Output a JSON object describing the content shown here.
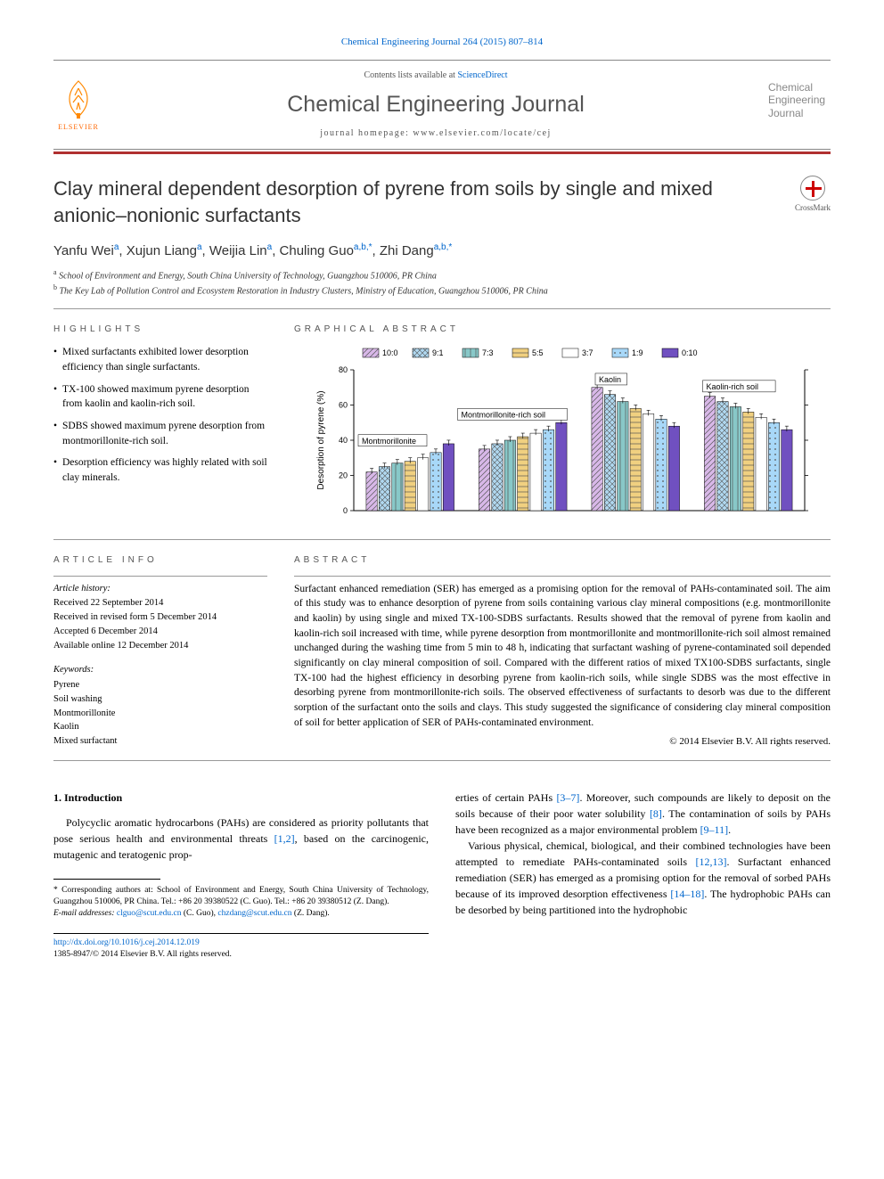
{
  "journal_ref": {
    "prefix": "Chemical Engineering Journal 264 (2015) 807–814",
    "link_text": "Chemical Engineering Journal 264 (2015) 807–814"
  },
  "masthead": {
    "contents_prefix": "Contents lists available at ",
    "contents_link": "ScienceDirect",
    "journal_title": "Chemical Engineering Journal",
    "homepage_prefix": "journal homepage: ",
    "homepage_url": "www.elsevier.com/locate/cej",
    "publisher": "ELSEVIER",
    "cover_text": "Chemical Engineering Journal"
  },
  "crossmark_label": "CrossMark",
  "title": "Clay mineral dependent desorption of pyrene from soils by single and mixed anionic–nonionic surfactants",
  "authors_html": "Yanfu Wei<sup>a</sup>, Xujun Liang<sup>a</sup>, Weijia Lin<sup>a</sup>, Chuling Guo<sup>a,b,*</sup>, Zhi Dang<sup>a,b,*</sup>",
  "affiliations": [
    {
      "sup": "a",
      "text": "School of Environment and Energy, South China University of Technology, Guangzhou 510006, PR China"
    },
    {
      "sup": "b",
      "text": "The Key Lab of Pollution Control and Ecosystem Restoration in Industry Clusters, Ministry of Education, Guangzhou 510006, PR China"
    }
  ],
  "highlights_heading": "HIGHLIGHTS",
  "highlights": [
    "Mixed surfactants exhibited lower desorption efficiency than single surfactants.",
    "TX-100 showed maximum pyrene desorption from kaolin and kaolin-rich soil.",
    "SDBS showed maximum pyrene desorption from montmorillonite-rich soil.",
    "Desorption efficiency was highly related with soil clay minerals."
  ],
  "graphical_heading": "GRAPHICAL ABSTRACT",
  "chart": {
    "type": "bar",
    "ylabel": "Desorption of pyrene (%)",
    "ylim": [
      0,
      80
    ],
    "ytick_step": 20,
    "categories": [
      "Montmorillonite",
      "Montmorillonite-rich soil",
      "Kaolin",
      "Kaolin-rich soil"
    ],
    "legend_labels": [
      "10:0",
      "9:1",
      "7:3",
      "5:5",
      "3:7",
      "1:9",
      "0:10"
    ],
    "legend_colors": [
      "#d8b8e8",
      "#b0d8f0",
      "#88c8c8",
      "#f0d080",
      "#ffffff",
      "#a8d8f8",
      "#7050c0"
    ],
    "legend_patterns": [
      "diag",
      "cross",
      "vert",
      "horiz",
      "none",
      "dots",
      "solid"
    ],
    "series": {
      "Montmorillonite": [
        22,
        25,
        27,
        28,
        30,
        33,
        38
      ],
      "Montmorillonite-rich soil": [
        35,
        38,
        40,
        42,
        44,
        46,
        50
      ],
      "Kaolin": [
        70,
        66,
        62,
        58,
        55,
        52,
        48
      ],
      "Kaolin-rich soil": [
        65,
        62,
        59,
        56,
        53,
        50,
        46
      ]
    },
    "background_color": "#ffffff",
    "axis_color": "#000000",
    "font_family": "Arial",
    "font_size_pt": 9
  },
  "article_info_heading": "ARTICLE INFO",
  "article_history_label": "Article history:",
  "article_history": [
    "Received 22 September 2014",
    "Received in revised form 5 December 2014",
    "Accepted 6 December 2014",
    "Available online 12 December 2014"
  ],
  "keywords_label": "Keywords:",
  "keywords": [
    "Pyrene",
    "Soil washing",
    "Montmorillonite",
    "Kaolin",
    "Mixed surfactant"
  ],
  "abstract_heading": "ABSTRACT",
  "abstract_text": "Surfactant enhanced remediation (SER) has emerged as a promising option for the removal of PAHs-contaminated soil. The aim of this study was to enhance desorption of pyrene from soils containing various clay mineral compositions (e.g. montmorillonite and kaolin) by using single and mixed TX-100-SDBS surfactants. Results showed that the removal of pyrene from kaolin and kaolin-rich soil increased with time, while pyrene desorption from montmorillonite and montmorillonite-rich soil almost remained unchanged during the washing time from 5 min to 48 h, indicating that surfactant washing of pyrene-contaminated soil depended significantly on clay mineral composition of soil. Compared with the different ratios of mixed TX100-SDBS surfactants, single TX-100 had the highest efficiency in desorbing pyrene from kaolin-rich soils, while single SDBS was the most effective in desorbing pyrene from montmorillonite-rich soils. The observed effectiveness of surfactants to desorb was due to the different sorption of the surfactant onto the soils and clays. This study suggested the significance of considering clay mineral composition of soil for better application of SER of PAHs-contaminated environment.",
  "copyright": "© 2014 Elsevier B.V. All rights reserved.",
  "intro_heading": "1. Introduction",
  "intro_col1": "Polycyclic aromatic hydrocarbons (PAHs) are considered as priority pollutants that pose serious health and environmental threats [1,2], based on the carcinogenic, mutagenic and teratogenic prop-",
  "intro_col2_p1": "erties of certain PAHs [3–7]. Moreover, such compounds are likely to deposit on the soils because of their poor water solubility [8]. The contamination of soils by PAHs have been recognized as a major environmental problem [9–11].",
  "intro_col2_p2": "Various physical, chemical, biological, and their combined technologies have been attempted to remediate PAHs-contaminated soils [12,13]. Surfactant enhanced remediation (SER) has emerged as a promising option for the removal of sorbed PAHs because of its improved desorption effectiveness [14–18]. The hydrophobic PAHs can be desorbed by being partitioned into the hydrophobic",
  "corr_author_note": "* Corresponding authors at: School of Environment and Energy, South China University of Technology, Guangzhou 510006, PR China. Tel.: +86 20 39380522 (C. Guo). Tel.: +86 20 39380512 (Z. Dang).",
  "email_label": "E-mail addresses: ",
  "emails": [
    {
      "addr": "clguo@scut.edu.cn",
      "who": " (C. Guo), "
    },
    {
      "addr": "chzdang@scut.edu.cn",
      "who": " (Z. Dang)."
    }
  ],
  "doi_line": "http://dx.doi.org/10.1016/j.cej.2014.12.019",
  "issn_line": "1385-8947/© 2014 Elsevier B.V. All rights reserved.",
  "refs": {
    "r12": "[1,2]",
    "r37": "[3–7]",
    "r8": "[8]",
    "r911": "[9–11]",
    "r1213": "[12,13]",
    "r1418": "[14–18]"
  }
}
